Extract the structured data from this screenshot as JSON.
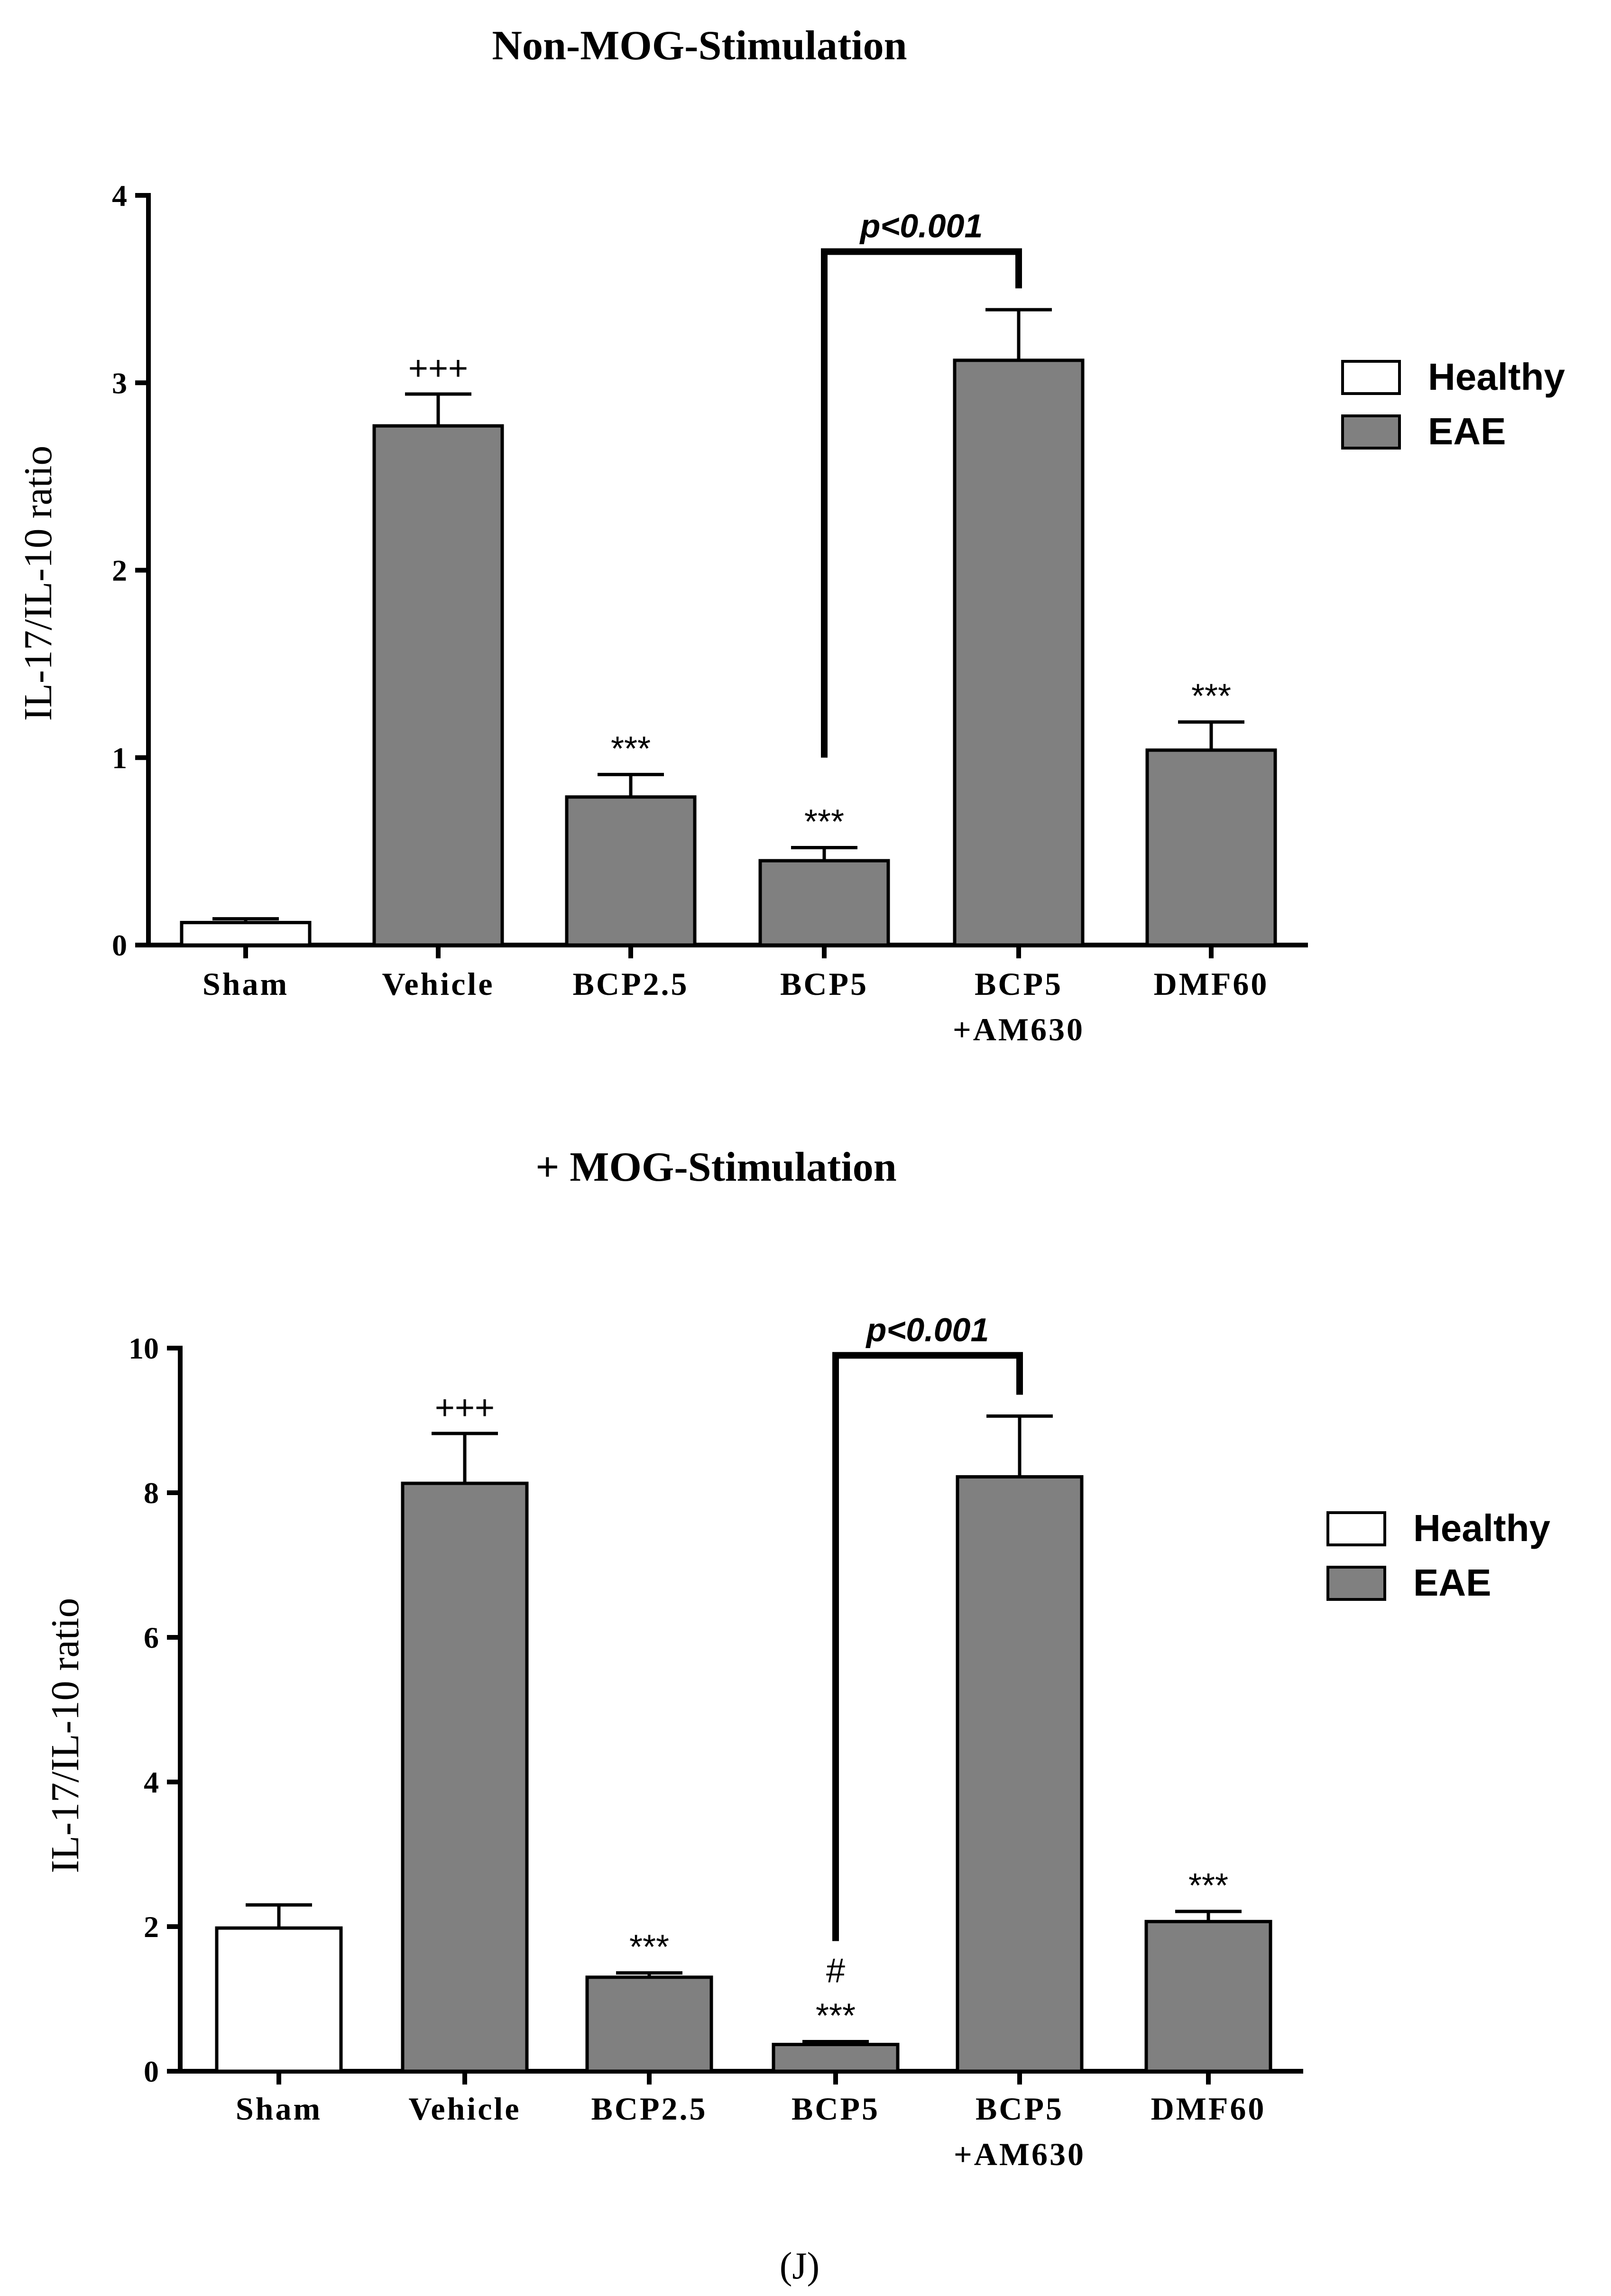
{
  "figure_label": "(J)",
  "chart_data": [
    {
      "type": "bar",
      "title": "Non-MOG-Stimulation",
      "xlabel": "",
      "ylabel": "IL-17/IL-10 ratio",
      "ylim": [
        0,
        4
      ],
      "yticks": [
        "0",
        "1",
        "2",
        "3",
        "4"
      ],
      "categories": [
        [
          "Sham"
        ],
        [
          "Vehicle"
        ],
        [
          "BCP2.5"
        ],
        [
          "BCP5"
        ],
        [
          "BCP5",
          "+AM630"
        ],
        [
          "DMF60"
        ]
      ],
      "values": [
        0.12,
        2.77,
        0.79,
        0.45,
        3.12,
        1.04
      ],
      "errors": [
        0.02,
        0.17,
        0.12,
        0.07,
        0.27,
        0.15
      ],
      "groups": [
        "Healthy",
        "EAE",
        "EAE",
        "EAE",
        "EAE",
        "EAE"
      ],
      "annotations": [
        {
          "index": 1,
          "text": "+++"
        },
        {
          "index": 2,
          "text": "***"
        },
        {
          "index": 3,
          "text": "***"
        },
        {
          "index": 5,
          "text": "***"
        }
      ],
      "bracket": {
        "from": 3,
        "to": 4,
        "text": "p<0.001",
        "level": 3.7,
        "start": 1.0
      },
      "legend": {
        "position": "right",
        "entries": [
          {
            "label": "Healthy",
            "color": "#ffffff"
          },
          {
            "label": "EAE",
            "color": "#808080"
          }
        ]
      }
    },
    {
      "type": "bar",
      "title": "+ MOG-Stimulation",
      "xlabel": "",
      "ylabel": "IL-17/IL-10 ratio",
      "ylim": [
        0,
        10
      ],
      "yticks": [
        "0",
        "2",
        "4",
        "6",
        "8",
        "10"
      ],
      "categories": [
        [
          "Sham"
        ],
        [
          "Vehicle"
        ],
        [
          "BCP2.5"
        ],
        [
          "BCP5"
        ],
        [
          "BCP5",
          "+AM630"
        ],
        [
          "DMF60"
        ]
      ],
      "values": [
        1.98,
        8.13,
        1.3,
        0.37,
        8.22,
        2.07
      ],
      "errors": [
        0.32,
        0.69,
        0.06,
        0.04,
        0.84,
        0.14
      ],
      "groups": [
        "Healthy",
        "EAE",
        "EAE",
        "EAE",
        "EAE",
        "EAE"
      ],
      "annotations": [
        {
          "index": 1,
          "text": "+++"
        },
        {
          "index": 2,
          "text": "***"
        },
        {
          "index": 3,
          "text": "***"
        },
        {
          "index": 3,
          "text": "#"
        },
        {
          "index": 5,
          "text": "***"
        }
      ],
      "bracket": {
        "from": 3,
        "to": 4,
        "text": "p<0.001",
        "level": 9.9,
        "start": 1.8
      },
      "legend": {
        "position": "right",
        "entries": [
          {
            "label": "Healthy",
            "color": "#ffffff"
          },
          {
            "label": "EAE",
            "color": "#808080"
          }
        ]
      }
    }
  ]
}
